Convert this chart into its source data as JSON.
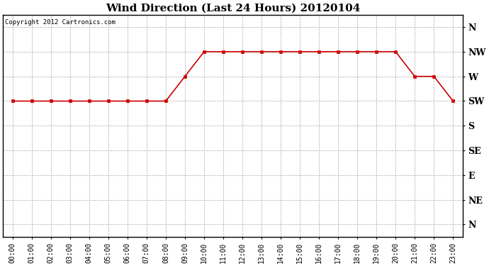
{
  "title": "Wind Direction (Last 24 Hours) 20120104",
  "copyright": "Copyright 2012 Cartronics.com",
  "x_labels": [
    "00:00",
    "01:00",
    "02:00",
    "03:00",
    "04:00",
    "05:00",
    "06:00",
    "07:00",
    "08:00",
    "09:00",
    "10:00",
    "11:00",
    "12:00",
    "13:00",
    "14:00",
    "15:00",
    "16:00",
    "17:00",
    "18:00",
    "19:00",
    "20:00",
    "21:00",
    "22:00",
    "23:00"
  ],
  "y_labels": [
    "N",
    "NW",
    "W",
    "SW",
    "S",
    "SE",
    "E",
    "NE",
    "N"
  ],
  "y_positions": [
    8,
    7,
    6,
    5,
    4,
    3,
    2,
    1,
    0
  ],
  "wind_data": [
    5,
    5,
    5,
    5,
    5,
    5,
    5,
    5,
    5,
    6,
    7,
    7,
    7,
    7,
    7,
    7,
    7,
    7,
    7,
    7,
    7,
    6,
    6,
    5
  ],
  "line_color": "#cc0000",
  "marker": "s",
  "marker_size": 3.5,
  "bg_color": "#ffffff",
  "plot_bg_color": "#ffffff",
  "grid_color": "#aaaaaa",
  "title_fontsize": 11,
  "copyright_fontsize": 6.5,
  "tick_fontsize": 7,
  "ytick_fontsize": 9
}
